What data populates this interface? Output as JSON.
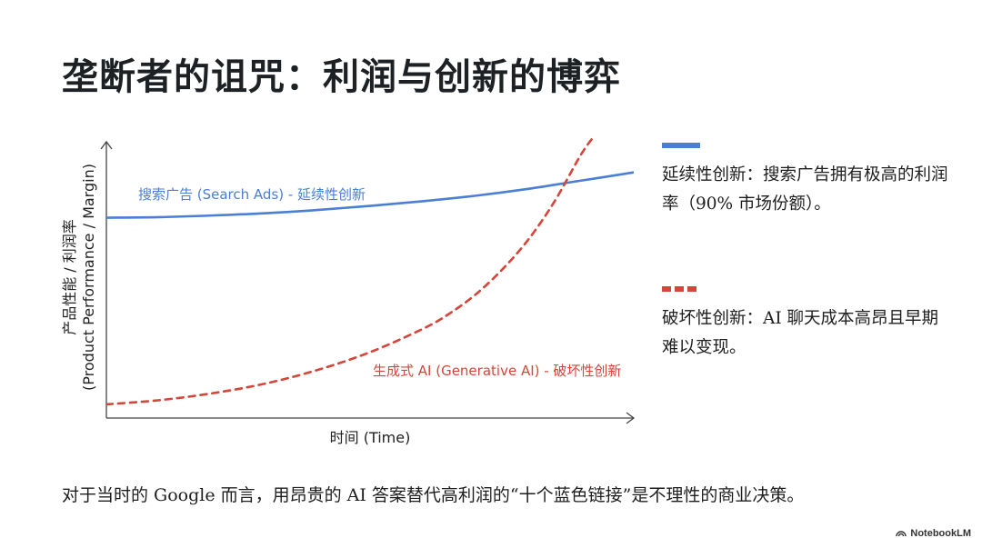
{
  "slide": {
    "title": "垄断者的诅咒：利润与创新的博弈",
    "footer": "对于当时的 Google 而言，用昂贵的 AI 答案替代高利润的“十个蓝色链接”是不理性的商业决策。",
    "brand": "NotebookLM"
  },
  "colors": {
    "blue": "#4a7fd4",
    "red": "#d6453a",
    "axis": "#444444"
  },
  "chart_data": {
    "type": "line",
    "xlabel": "时间 (Time)",
    "ylabel": "产品性能 / 利润率",
    "ylabel2": "(Product Performance / Margin)",
    "xlim": [
      0,
      100
    ],
    "ylim": [
      0,
      100
    ],
    "grid": false,
    "series": [
      {
        "name": "搜索广告 (Search Ads) - 延续性创新",
        "style": "solid",
        "color": "#4a7fd4",
        "x": [
          0,
          10,
          20,
          30,
          40,
          50,
          60,
          70,
          80,
          90,
          100
        ],
        "y": [
          73,
          73.2,
          73.8,
          74.6,
          75.8,
          77.3,
          79,
          81,
          83.5,
          86.5,
          89.5
        ]
      },
      {
        "name": "生成式 AI (Generative AI) - 破坏性创新",
        "style": "dashed",
        "color": "#d6453a",
        "x": [
          0,
          10,
          20,
          30,
          40,
          50,
          60,
          65,
          70,
          75,
          80,
          85,
          90,
          93
        ],
        "y": [
          5,
          6.5,
          9,
          12.5,
          17.5,
          24,
          32.5,
          38,
          45,
          54,
          65,
          79,
          96,
          104
        ]
      }
    ]
  },
  "legend": [
    {
      "color": "#4a7fd4",
      "style": "solid",
      "text": "延续性创新：搜索广告拥有极高的利润率（90% 市场份额）。"
    },
    {
      "color": "#d6453a",
      "style": "dashed",
      "text": "破坏性创新：AI 聊天成本高昂且早期难以变现。"
    }
  ]
}
